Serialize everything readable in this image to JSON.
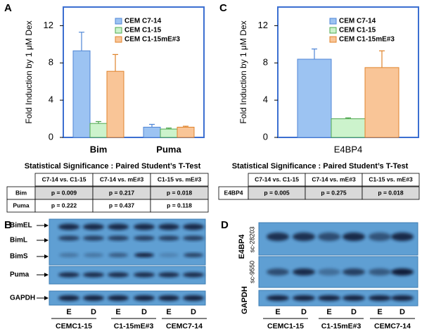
{
  "panel_labels": [
    "A",
    "B",
    "C",
    "D"
  ],
  "chart_data": [
    {
      "type": "bar",
      "ylabel": "Fold Induction by 1 μM Dex",
      "categories": [
        "Bim",
        "Puma"
      ],
      "series": [
        {
          "name": "CEM C7-14",
          "color": "#9cc3f2",
          "edge": "#4f86d6",
          "values": [
            9.3,
            1.1
          ],
          "errors": [
            2.0,
            0.3
          ]
        },
        {
          "name": "CEM C1-15",
          "color": "#ccf3cc",
          "edge": "#4fa84f",
          "values": [
            1.5,
            0.9
          ],
          "errors": [
            0.2,
            0.1
          ]
        },
        {
          "name": "CEM C1-15mE#3",
          "color": "#f9c597",
          "edge": "#e0842c",
          "values": [
            7.1,
            1.1
          ],
          "errors": [
            1.8,
            0.1
          ]
        }
      ],
      "ylim": [
        0,
        14
      ],
      "yticks": [
        0,
        4,
        8,
        12
      ],
      "legend": "upper right",
      "frame_color": "#3c6fd1"
    },
    {
      "type": "bar",
      "ylabel": "Fold Induction by 1 μM Dex",
      "categories": [
        "E4BP4"
      ],
      "series": [
        {
          "name": "CEM C7-14",
          "color": "#9cc3f2",
          "edge": "#4f86d6",
          "values": [
            8.4
          ],
          "errors": [
            1.1
          ]
        },
        {
          "name": "CEM C1-15",
          "color": "#ccf3cc",
          "edge": "#4fa84f",
          "values": [
            2.0
          ],
          "errors": [
            0.1
          ]
        },
        {
          "name": "CEM C1-15mE#3",
          "color": "#f9c597",
          "edge": "#e0842c",
          "values": [
            7.5
          ],
          "errors": [
            1.8
          ]
        }
      ],
      "ylim": [
        0,
        14
      ],
      "yticks": [
        0,
        4,
        8,
        12
      ],
      "legend": "upper right",
      "frame_color": "#3c6fd1"
    }
  ],
  "tables": [
    {
      "title": "Statistical Significance : Paired Student’s T-Test",
      "columns": [
        "C7-14 vs. C1-15",
        "C7-14 vs. mE#3",
        "C1-15 vs. mE#3"
      ],
      "rows": [
        {
          "label": "Bim",
          "cells": [
            "p = 0.009",
            "p = 0.217",
            "p = 0.018"
          ]
        },
        {
          "label": "Puma",
          "cells": [
            "p = 0.222",
            "p = 0.437",
            "p = 0.118"
          ]
        }
      ]
    },
    {
      "title": "Statistical Significance : Paired Student’s T-Test",
      "columns": [
        "C7-14 vs. C1-15",
        "C7-14 vs. mE#3",
        "C1-15 vs. mE#3"
      ],
      "rows": [
        {
          "label": "E4BP4",
          "cells": [
            "p = 0.005",
            "p = 0.275",
            "p = 0.018"
          ]
        }
      ]
    }
  ],
  "blots": [
    {
      "bands": [
        "BimEL",
        "BimL",
        "BimS",
        "Puma",
        "GAPDH"
      ],
      "lanes": [
        "E",
        "D",
        "E",
        "D",
        "E",
        "D"
      ],
      "groups": [
        "CEMC1-15",
        "C1-15mE#3",
        "CEMC7-14"
      ]
    },
    {
      "protein": "E4BP4",
      "antibodies": [
        "sc-28203",
        "sc-9550"
      ],
      "control": "GAPDH",
      "lanes": [
        "E",
        "D",
        "E",
        "D",
        "E",
        "D"
      ],
      "groups": [
        "CEMC1-15",
        "C1-15mE#3",
        "CEMC7-14"
      ]
    }
  ]
}
